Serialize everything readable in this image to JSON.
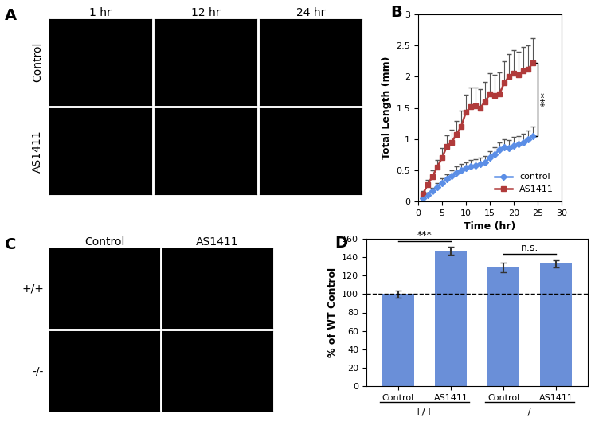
{
  "chart_data": [
    {
      "type": "image",
      "annotations": [
        "A"
      ],
      "column_labels": [
        "1 hr",
        "12 hr",
        "24 hr"
      ],
      "row_labels": [
        "Control",
        "AS1411"
      ]
    },
    {
      "type": "line",
      "annotations": [
        "B",
        "***"
      ],
      "x_label": "Time (hr)",
      "y_label": "Total Length (mm)",
      "x": [
        1,
        2,
        3,
        4,
        5,
        6,
        7,
        8,
        9,
        10,
        11,
        12,
        13,
        14,
        15,
        16,
        17,
        18,
        19,
        20,
        21,
        22,
        23,
        24
      ],
      "series": [
        {
          "name": "control",
          "color": "#5b8ee6",
          "marker": "diamond",
          "values": [
            0.05,
            0.1,
            0.17,
            0.23,
            0.3,
            0.36,
            0.41,
            0.46,
            0.5,
            0.53,
            0.56,
            0.58,
            0.6,
            0.62,
            0.7,
            0.75,
            0.83,
            0.87,
            0.85,
            0.9,
            0.92,
            0.95,
            1.0,
            1.05
          ],
          "error": [
            0.02,
            0.04,
            0.05,
            0.06,
            0.07,
            0.08,
            0.09,
            0.1,
            0.1,
            0.1,
            0.1,
            0.1,
            0.1,
            0.11,
            0.11,
            0.12,
            0.12,
            0.12,
            0.13,
            0.13,
            0.13,
            0.14,
            0.14,
            0.15
          ]
        },
        {
          "name": "AS1411",
          "color": "#b03a3a",
          "marker": "square",
          "values": [
            0.12,
            0.27,
            0.4,
            0.55,
            0.7,
            0.88,
            0.95,
            1.07,
            1.2,
            1.43,
            1.52,
            1.53,
            1.5,
            1.6,
            1.72,
            1.7,
            1.72,
            1.9,
            2.0,
            2.05,
            2.03,
            2.1,
            2.12,
            2.22
          ],
          "error": [
            0.05,
            0.08,
            0.1,
            0.12,
            0.15,
            0.18,
            0.2,
            0.22,
            0.25,
            0.28,
            0.3,
            0.3,
            0.3,
            0.32,
            0.33,
            0.33,
            0.35,
            0.35,
            0.36,
            0.37,
            0.37,
            0.38,
            0.38,
            0.4
          ]
        }
      ],
      "xlim": [
        0,
        30
      ],
      "xticks": [
        0,
        5,
        10,
        15,
        20,
        25,
        30
      ],
      "ylim": [
        0,
        3
      ],
      "yticks": [
        0,
        0.5,
        1,
        1.5,
        2,
        2.5,
        3
      ],
      "legend": "lower right"
    },
    {
      "type": "image",
      "annotations": [
        "C"
      ],
      "column_labels": [
        "Control",
        "AS1411"
      ],
      "row_labels": [
        "+/+",
        "-/-"
      ]
    },
    {
      "type": "bar",
      "annotations": [
        "D"
      ],
      "y_label": "% of WT Control",
      "categories": [
        "Control",
        "AS1411",
        "Control",
        "AS1411"
      ],
      "group_labels": [
        "+/+",
        "-/-"
      ],
      "values": [
        100,
        147,
        129,
        133
      ],
      "error": [
        4,
        4,
        5,
        4
      ],
      "color": "#6a8fd8",
      "reference_line": 100,
      "significance": [
        {
          "text": "***",
          "between": [
            0,
            1
          ]
        },
        {
          "text": "n.s.",
          "between": [
            2,
            3
          ]
        }
      ],
      "ylim": [
        0,
        160
      ],
      "yticks": [
        0,
        20,
        40,
        60,
        80,
        100,
        120,
        140,
        160
      ]
    }
  ]
}
